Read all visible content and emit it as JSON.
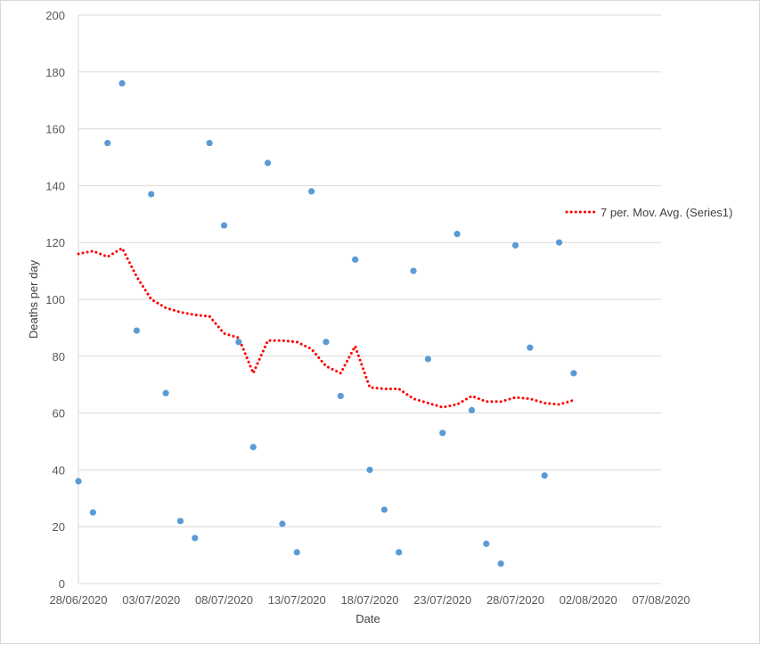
{
  "chart_data": {
    "type": "scatter",
    "title": "",
    "xlabel": "Date",
    "ylabel": "Deaths per day",
    "xlim": [
      "28/06/2020",
      "07/08/2020"
    ],
    "ylim": [
      0,
      200
    ],
    "y_ticks": [
      0,
      20,
      40,
      60,
      80,
      100,
      120,
      140,
      160,
      180,
      200
    ],
    "x_ticks": [
      "28/06/2020",
      "03/07/2020",
      "08/07/2020",
      "13/07/2020",
      "18/07/2020",
      "23/07/2020",
      "28/07/2020",
      "02/08/2020",
      "07/08/2020"
    ],
    "grid": "horizontal",
    "legend_position": "right",
    "colors": {
      "points": "#5b9bd5",
      "trendline": "#ff0000",
      "grid": "#d9d9d9"
    },
    "series": [
      {
        "x": [
          "28/06/2020",
          "29/06/2020",
          "30/06/2020",
          "01/07/2020",
          "02/07/2020",
          "03/07/2020",
          "04/07/2020",
          "05/07/2020",
          "06/07/2020",
          "07/07/2020",
          "08/07/2020",
          "09/07/2020",
          "10/07/2020",
          "11/07/2020",
          "12/07/2020",
          "13/07/2020",
          "14/07/2020",
          "15/07/2020",
          "16/07/2020",
          "17/07/2020",
          "18/07/2020",
          "19/07/2020",
          "20/07/2020",
          "21/07/2020",
          "22/07/2020",
          "23/07/2020",
          "24/07/2020",
          "25/07/2020",
          "26/07/2020",
          "27/07/2020",
          "28/07/2020",
          "29/07/2020",
          "30/07/2020",
          "31/07/2020",
          "01/08/2020"
        ],
        "values": [
          36,
          25,
          155,
          176,
          89,
          137,
          67,
          22,
          16,
          155,
          126,
          85,
          48,
          148,
          21,
          11,
          138,
          85,
          66,
          114,
          40,
          26,
          11,
          110,
          79,
          53,
          123,
          61,
          14,
          7,
          119,
          83,
          38,
          120,
          74
        ]
      }
    ],
    "trendline": {
      "label": "7 per. Mov. Avg. (Series1)",
      "x": [
        "28/06/2020",
        "29/06/2020",
        "30/06/2020",
        "01/07/2020",
        "02/07/2020",
        "03/07/2020",
        "04/07/2020",
        "05/07/2020",
        "06/07/2020",
        "07/07/2020",
        "08/07/2020",
        "09/07/2020",
        "10/07/2020",
        "11/07/2020",
        "12/07/2020",
        "13/07/2020",
        "14/07/2020",
        "15/07/2020",
        "16/07/2020",
        "17/07/2020",
        "18/07/2020",
        "19/07/2020",
        "20/07/2020",
        "21/07/2020",
        "22/07/2020",
        "23/07/2020",
        "24/07/2020",
        "25/07/2020",
        "26/07/2020",
        "27/07/2020",
        "28/07/2020",
        "29/07/2020",
        "30/07/2020",
        "31/07/2020",
        "01/08/2020"
      ],
      "values": [
        116,
        117,
        115,
        118,
        108,
        100,
        97,
        95.5,
        94.5,
        94,
        88,
        86.5,
        74,
        85.5,
        85.5,
        85,
        82.5,
        76.5,
        74,
        83.5,
        69,
        68.5,
        68.5,
        65,
        63.5,
        62,
        63,
        66,
        64,
        64,
        65.5,
        65,
        63.5,
        63,
        64.5
      ]
    }
  }
}
